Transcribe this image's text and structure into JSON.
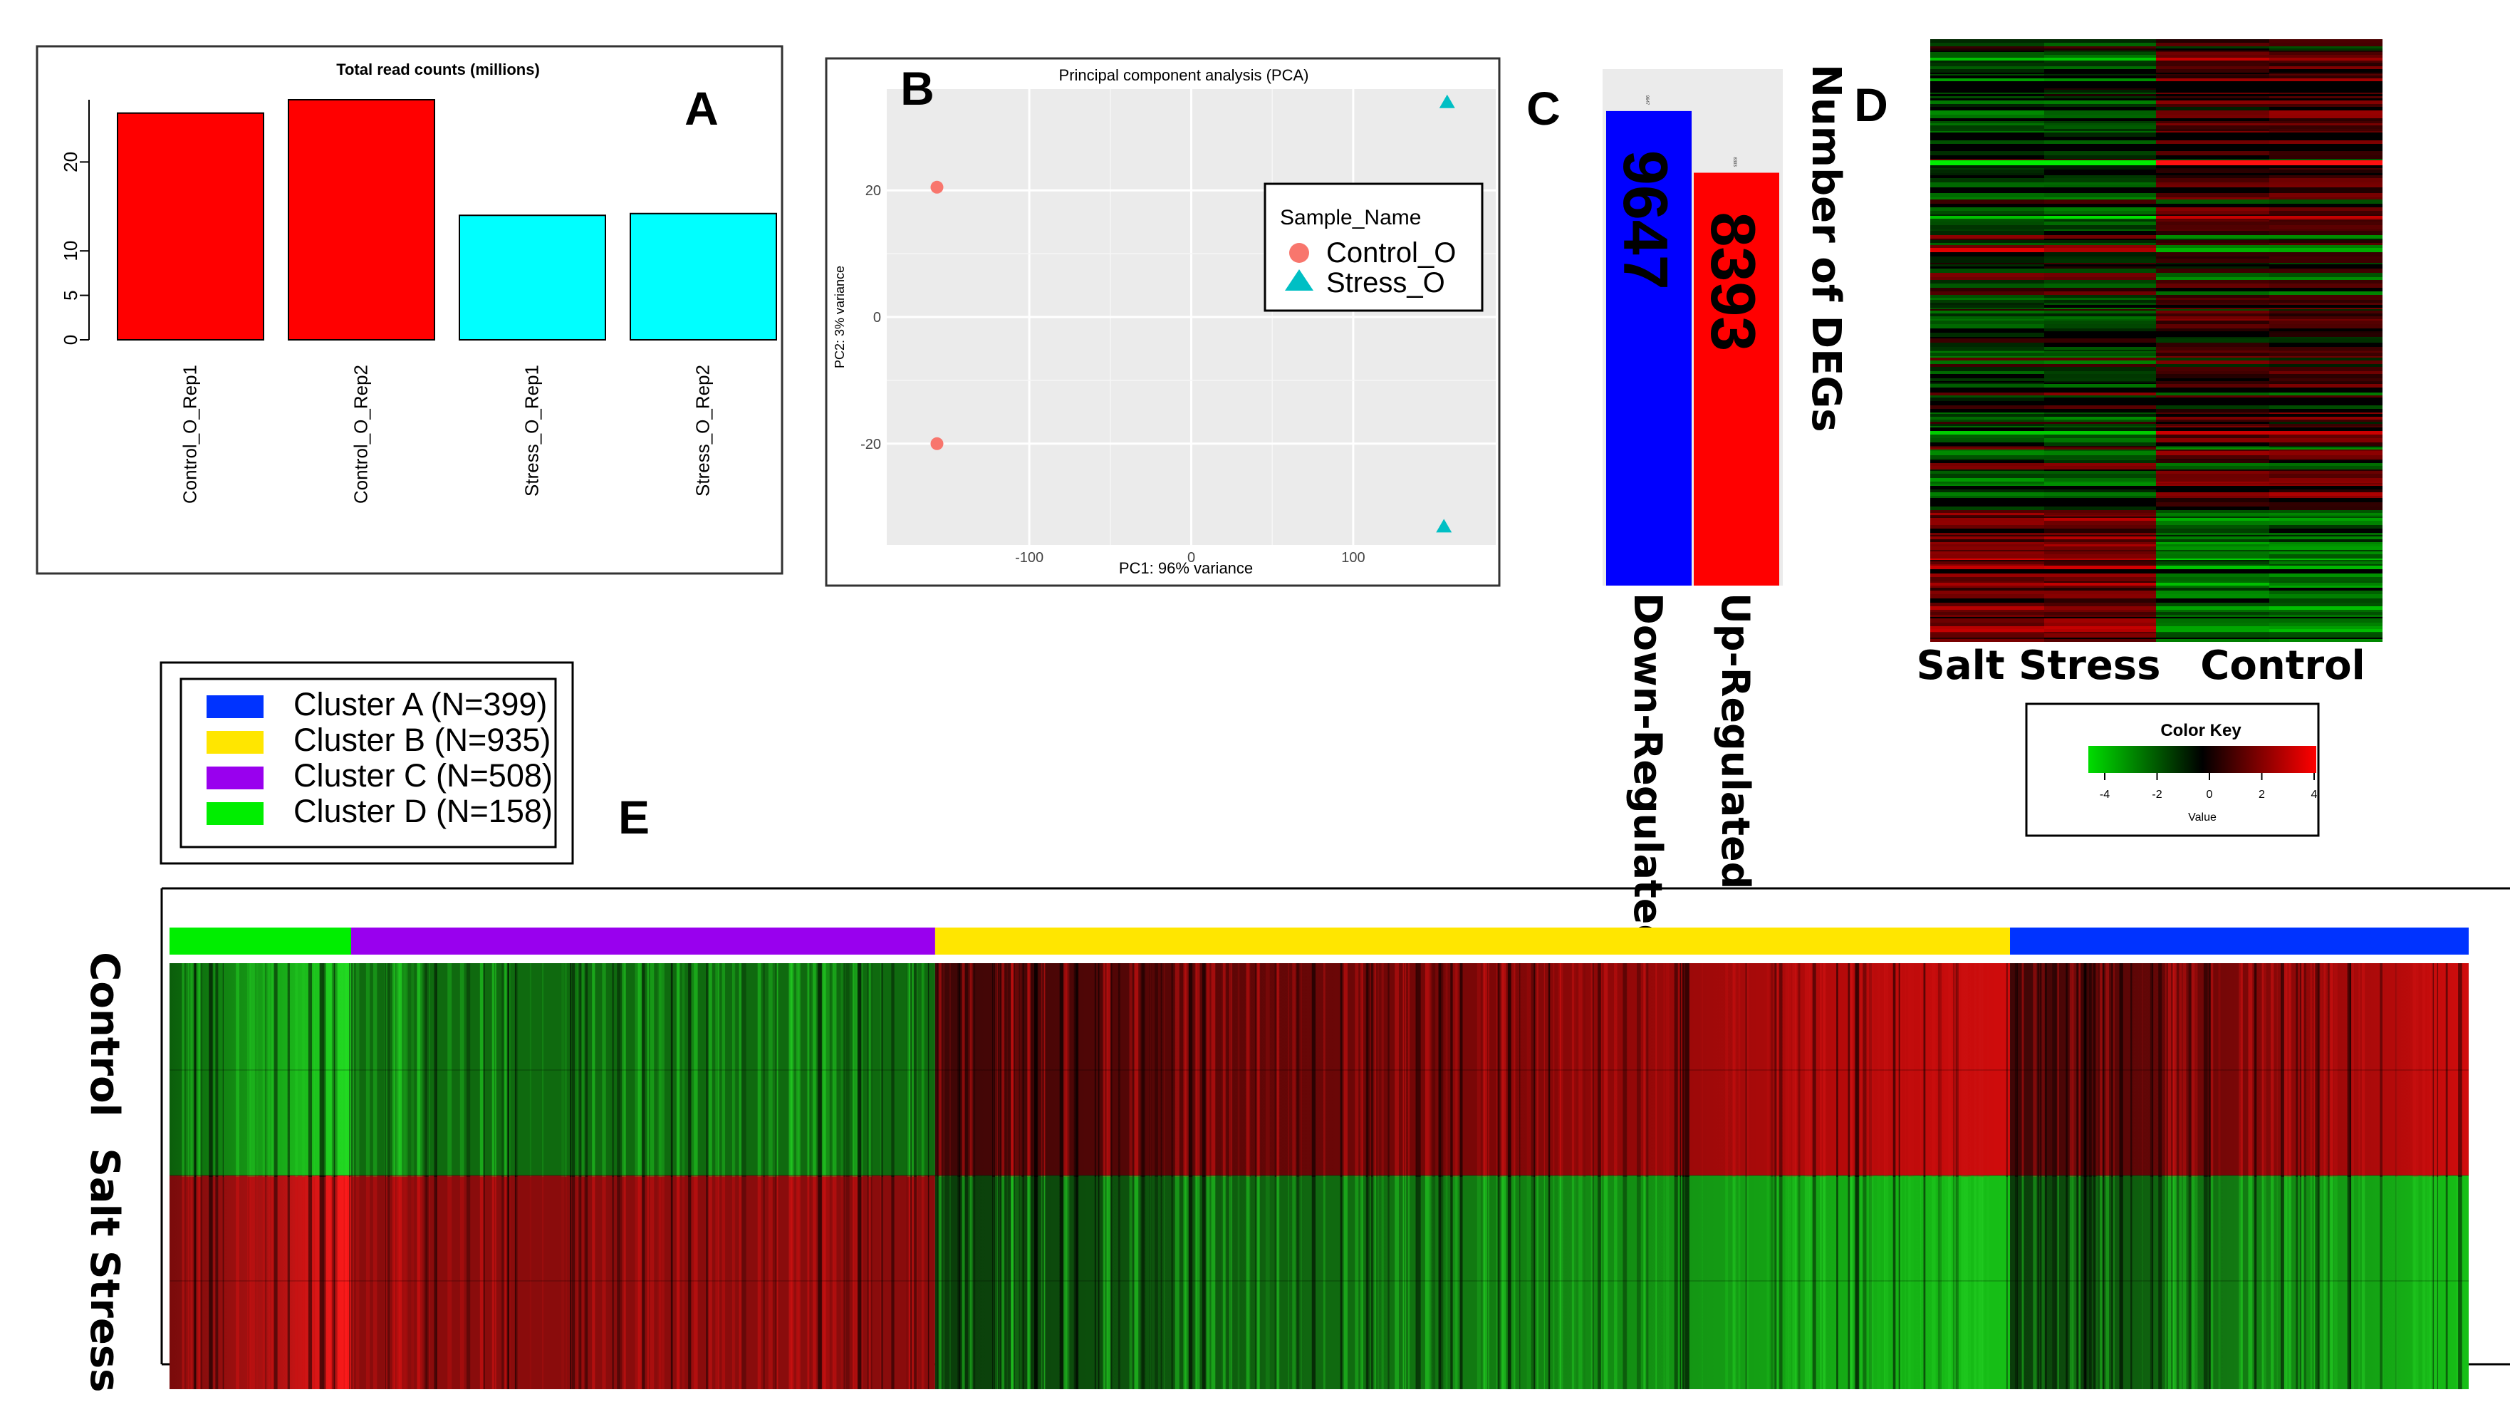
{
  "colors": {
    "control": "#ff0000",
    "stress": "#00ffff",
    "down": "#0000ff",
    "up": "#ff0000",
    "pca_control": "#f8766d",
    "pca_stress": "#00bfc4",
    "cluster_a": "#0033ff",
    "cluster_b": "#ffe600",
    "cluster_c": "#9900ee",
    "cluster_d": "#00ee00",
    "heat_low": "#00dd00",
    "heat_mid": "#000000",
    "heat_high": "#ff0000"
  },
  "panels": {
    "a": "A",
    "b": "B",
    "c": "C",
    "d": "D",
    "e": "E"
  },
  "chart_data": [
    {
      "id": "A",
      "type": "bar",
      "title": "Total read counts (millions)",
      "categories": [
        "Control_O_Rep1",
        "Control_O_Rep2",
        "Stress_O_Rep1",
        "Stress_O_Rep2"
      ],
      "values": [
        25.5,
        27,
        14,
        14.2
      ],
      "bar_colors": [
        "control",
        "control",
        "stress",
        "stress"
      ],
      "yticks": [
        0,
        5,
        10,
        20
      ],
      "ylim": [
        0,
        27
      ],
      "xlabel": "",
      "ylabel": ""
    },
    {
      "id": "B",
      "type": "scatter",
      "title": "Principal component analysis (PCA)",
      "xlabel": "PC1: 96% variance",
      "ylabel": "PC2: 3% variance",
      "xticks": [
        -100,
        0,
        100
      ],
      "yticks": [
        -20,
        0,
        20
      ],
      "xlim": [
        -188,
        188
      ],
      "ylim": [
        -36,
        36
      ],
      "legend_title": "Sample_Name",
      "series": [
        {
          "name": "Control_O",
          "shape": "circle",
          "color": "pca_control",
          "points": [
            [
              -157,
              20.5
            ],
            [
              -157,
              -20
            ]
          ]
        },
        {
          "name": "Stress_O",
          "shape": "triangle",
          "color": "pca_stress",
          "points": [
            [
              158,
              34
            ],
            [
              156,
              -33
            ]
          ]
        }
      ]
    },
    {
      "id": "C",
      "type": "bar",
      "title": "Number of DEGs",
      "categories": [
        "Down-Regulated",
        "Up-Regulated"
      ],
      "values": [
        9647,
        8393
      ],
      "value_labels": [
        "9647",
        "8393"
      ],
      "top_labels": [
        "9647",
        "8393"
      ],
      "bar_colors": [
        "down",
        "up"
      ],
      "ylim": [
        0,
        10500
      ]
    },
    {
      "id": "D",
      "type": "heatmap",
      "columns": [
        "Salt Stress",
        "Control"
      ],
      "color_key_title": "Color Key",
      "color_key_label": "Value",
      "color_key_ticks": [
        -4,
        -2,
        0,
        2,
        4
      ]
    },
    {
      "id": "E",
      "type": "heatmap",
      "rows": [
        "Control",
        "Salt Stress"
      ],
      "clusters": [
        {
          "name": "Cluster D",
          "n": 158,
          "label": "Cluster D (N=158)",
          "color": "cluster_d"
        },
        {
          "name": "Cluster C",
          "n": 508,
          "label": "Cluster C (N=508)",
          "color": "cluster_c"
        },
        {
          "name": "Cluster B",
          "n": 935,
          "label": "Cluster B (N=935)",
          "color": "cluster_b"
        },
        {
          "name": "Cluster A",
          "n": 399,
          "label": "Cluster A (N=399)",
          "color": "cluster_a"
        }
      ],
      "legend_order": [
        "Cluster A",
        "Cluster B",
        "Cluster C",
        "Cluster D"
      ],
      "legend": [
        {
          "label": "Cluster A (N=399)",
          "color": "cluster_a"
        },
        {
          "label": "Cluster B (N=935)",
          "color": "cluster_b"
        },
        {
          "label": "Cluster C (N=508)",
          "color": "cluster_c"
        },
        {
          "label": "Cluster D (N=158)",
          "color": "cluster_d"
        }
      ]
    }
  ]
}
